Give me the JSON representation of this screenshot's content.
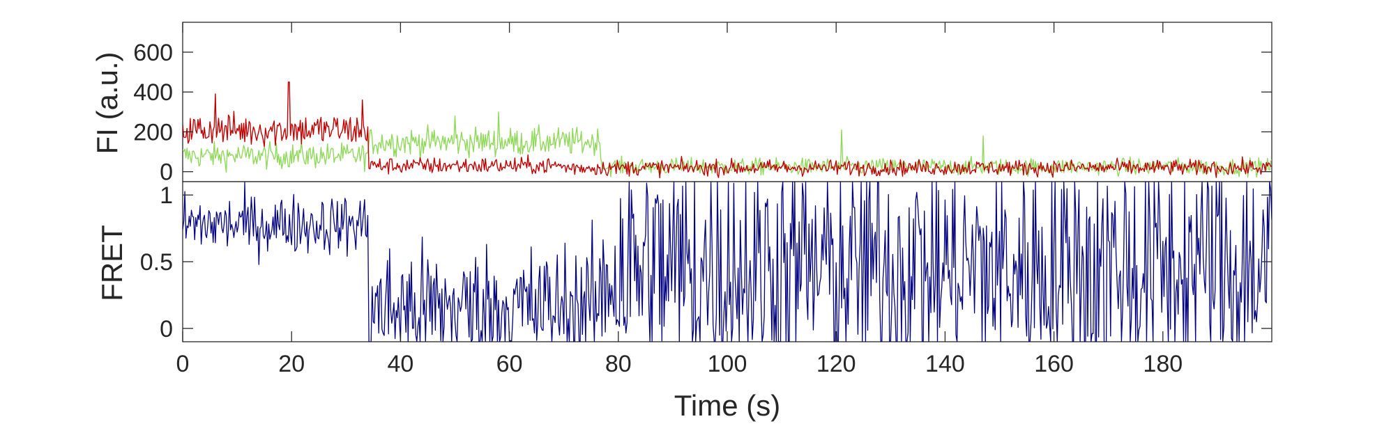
{
  "chart_data": [
    {
      "type": "line",
      "ylabel": "FI (a.u.)",
      "xlim": [
        0,
        200
      ],
      "ylim": [
        -50,
        750
      ],
      "yticks": [
        0,
        200,
        400,
        600
      ],
      "ytick_labels": [
        "0",
        "200",
        "400",
        "600"
      ],
      "grid": false,
      "colors": {
        "red": "#c00000",
        "green": "#90d85a"
      },
      "series": [
        {
          "color": "#c00000",
          "segments": [
            {
              "x_start": 0,
              "x_end": 34,
              "mean": 210,
              "noise": 60
            },
            {
              "x_start": 34,
              "x_end": 70,
              "mean": 30,
              "noise": 30
            },
            {
              "x_start": 70,
              "x_end": 200,
              "mean": 20,
              "noise": 28
            }
          ],
          "peak_values": [
            [
              19.5,
              450
            ],
            [
              33,
              360
            ],
            [
              6,
              390
            ]
          ]
        },
        {
          "color": "#90d85a",
          "segments": [
            {
              "x_start": 0,
              "x_end": 34,
              "mean": 80,
              "noise": 45
            },
            {
              "x_start": 34,
              "x_end": 77,
              "mean": 150,
              "noise": 50
            },
            {
              "x_start": 77,
              "x_end": 200,
              "mean": 25,
              "noise": 30
            }
          ],
          "peak_values": [
            [
              50,
              280
            ],
            [
              58,
              300
            ],
            [
              121,
              210
            ],
            [
              147,
              180
            ]
          ]
        }
      ]
    },
    {
      "type": "line",
      "xlabel": "Time (s)",
      "ylabel": "FRET",
      "xlim": [
        0,
        200
      ],
      "ylim": [
        -0.1,
        1.1
      ],
      "yticks": [
        0,
        0.5,
        1
      ],
      "ytick_labels": [
        "0",
        "0.5",
        "1"
      ],
      "xticks": [
        0,
        20,
        40,
        60,
        80,
        100,
        120,
        140,
        160,
        180
      ],
      "xtick_labels": [
        "0",
        "20",
        "40",
        "60",
        "80",
        "100",
        "120",
        "140",
        "160",
        "180"
      ],
      "grid": false,
      "color": "#000080",
      "segments": [
        {
          "x_start": 0,
          "x_end": 34,
          "mean": 0.78,
          "noise": 0.16
        },
        {
          "x_start": 34,
          "x_end": 77,
          "mean": 0.15,
          "noise": 0.35
        },
        {
          "x_start": 77,
          "x_end": 200,
          "mean": 0.45,
          "noise": 0.7
        }
      ]
    }
  ]
}
